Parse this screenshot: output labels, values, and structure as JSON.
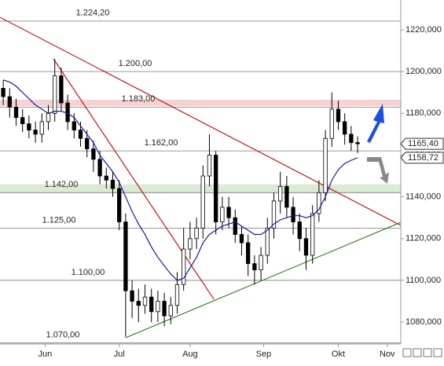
{
  "chart_data": {
    "type": "candlestick",
    "candles": {
      "open": [
        1192,
        1188,
        1183,
        1178,
        1175,
        1172,
        1170,
        1176,
        1180,
        1198,
        1185,
        1176,
        1172,
        1168,
        1163,
        1158,
        1150,
        1148,
        1144,
        1128,
        1095,
        1090,
        1088,
        1092,
        1085,
        1090,
        1083,
        1088,
        1098,
        1115,
        1120,
        1125,
        1150,
        1160,
        1128,
        1135,
        1130,
        1122,
        1118,
        1108,
        1105,
        1112,
        1125,
        1138,
        1145,
        1135,
        1128,
        1120,
        1112,
        1132,
        1142,
        1168,
        1182,
        1176,
        1170,
        1166
      ],
      "high": [
        1196,
        1192,
        1187,
        1182,
        1179,
        1176,
        1180,
        1184,
        1206,
        1202,
        1189,
        1180,
        1176,
        1172,
        1167,
        1162,
        1154,
        1152,
        1148,
        1132,
        1100,
        1096,
        1098,
        1096,
        1095,
        1094,
        1092,
        1104,
        1125,
        1128,
        1130,
        1155,
        1170,
        1162,
        1140,
        1140,
        1134,
        1126,
        1122,
        1112,
        1116,
        1130,
        1142,
        1152,
        1150,
        1140,
        1132,
        1125,
        1136,
        1148,
        1172,
        1190,
        1186,
        1180,
        1174,
        1169
      ],
      "low": [
        1184,
        1178,
        1174,
        1171,
        1168,
        1166,
        1166,
        1172,
        1176,
        1181,
        1172,
        1168,
        1164,
        1159,
        1152,
        1146,
        1144,
        1140,
        1124,
        1073,
        1082,
        1080,
        1084,
        1080,
        1080,
        1078,
        1079,
        1084,
        1095,
        1110,
        1115,
        1120,
        1145,
        1122,
        1124,
        1125,
        1118,
        1112,
        1102,
        1098,
        1100,
        1108,
        1120,
        1132,
        1130,
        1122,
        1114,
        1105,
        1108,
        1128,
        1138,
        1164,
        1172,
        1165,
        1162,
        1161
      ],
      "close": [
        1188,
        1183,
        1178,
        1175,
        1172,
        1170,
        1176,
        1180,
        1198,
        1185,
        1176,
        1172,
        1168,
        1163,
        1158,
        1150,
        1148,
        1144,
        1128,
        1095,
        1090,
        1088,
        1092,
        1085,
        1090,
        1083,
        1088,
        1098,
        1115,
        1120,
        1125,
        1150,
        1160,
        1128,
        1135,
        1130,
        1122,
        1118,
        1108,
        1105,
        1112,
        1125,
        1138,
        1145,
        1135,
        1128,
        1120,
        1112,
        1132,
        1142,
        1168,
        1182,
        1176,
        1170,
        1166,
        1165.4
      ]
    },
    "moving_average": {
      "color": "#1a1aa0",
      "values": [
        1196,
        1195,
        1193,
        1190,
        1187,
        1184,
        1182,
        1180,
        1181,
        1181,
        1180,
        1178,
        1174,
        1170,
        1166,
        1160,
        1156,
        1152,
        1147,
        1140,
        1133,
        1127,
        1122,
        1116,
        1111,
        1107,
        1103,
        1100,
        1101,
        1106,
        1111,
        1118,
        1122,
        1124,
        1126,
        1127,
        1128,
        1126,
        1124,
        1122,
        1122,
        1124,
        1127,
        1129,
        1130,
        1131,
        1131,
        1130,
        1131,
        1134,
        1140,
        1148,
        1153,
        1156,
        1157.5,
        1158.72
      ]
    },
    "xlim": [
      -0.5,
      61.7
    ],
    "xticks": [
      {
        "value": 6.5,
        "label": "Jun"
      },
      {
        "value": 18,
        "label": "Jul"
      },
      {
        "value": 29,
        "label": "Aug"
      },
      {
        "value": 40.4,
        "label": "Sep"
      },
      {
        "value": 52,
        "label": "Okt"
      },
      {
        "value": 59.6,
        "label": "Nov"
      }
    ],
    "ylim": [
      1069.5,
      1234.3
    ],
    "yticks": [
      {
        "value": 1080,
        "label": "1080,000"
      },
      {
        "value": 1100,
        "label": "1100,000"
      },
      {
        "value": 1120,
        "label": "1120,000"
      },
      {
        "value": 1140,
        "label": "1140,000"
      },
      {
        "value": 1160,
        "label": "1160,000"
      },
      {
        "value": 1180,
        "label": "1180,000"
      },
      {
        "value": 1200,
        "label": "1200,000"
      },
      {
        "value": 1220,
        "label": "1220,000"
      }
    ],
    "levels": [
      {
        "value": 1224.2,
        "label": "1.224,20"
      },
      {
        "value": 1200,
        "label": "1.200,00"
      },
      {
        "value": 1183,
        "label": "1.183,00"
      },
      {
        "value": 1162,
        "label": "1.162,00"
      },
      {
        "value": 1142,
        "label": "1.142,00"
      },
      {
        "value": 1125,
        "label": "1.125,00"
      },
      {
        "value": 1100,
        "label": "1.100,00"
      },
      {
        "value": 1070,
        "label": "1.070,00"
      }
    ],
    "zones": [
      {
        "from": 1183.5,
        "to": 1186.5,
        "color": "#f6c6c6"
      },
      {
        "from": 1142,
        "to": 1146,
        "color": "#cfe6c8"
      }
    ],
    "trendlines": [
      {
        "color": "#c00000",
        "x": [
          -0.5,
          61.7
        ],
        "values": [
          1226,
          1126.3
        ]
      },
      {
        "color": "#c00000",
        "x": [
          7.8,
          32.7
        ],
        "values": [
          1206.1,
          1090.9
        ]
      },
      {
        "color": "#2a7a1a",
        "x": [
          19,
          61.7
        ],
        "values": [
          1072.5,
          1127.8
        ]
      }
    ],
    "price_tags": [
      {
        "value": 1165.4,
        "label": "1165,40"
      },
      {
        "value": 1158.72,
        "label": "1158,72"
      }
    ]
  }
}
